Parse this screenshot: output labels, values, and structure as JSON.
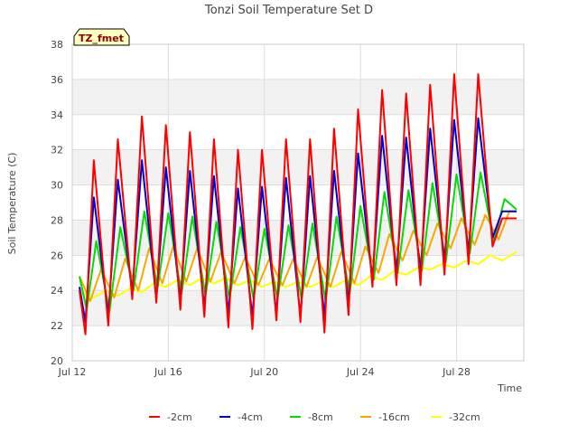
{
  "chart_data": {
    "type": "line",
    "title": "Tonzi Soil Temperature Set D",
    "xlabel": "Time",
    "ylabel": "Soil Temperature (C)",
    "badge": "TZ_fmet",
    "ylim": [
      20,
      38
    ],
    "yticks": [
      20,
      22,
      24,
      26,
      28,
      30,
      32,
      34,
      36,
      38
    ],
    "xlim": [
      12.0,
      30.8
    ],
    "xticks": [
      {
        "value": 12,
        "label": "Jul 12"
      },
      {
        "value": 16,
        "label": "Jul 16"
      },
      {
        "value": 20,
        "label": "Jul 20"
      },
      {
        "value": 24,
        "label": "Jul 24"
      },
      {
        "value": 28,
        "label": "Jul 28"
      }
    ],
    "grid": true,
    "legend_position": "bottom",
    "series": [
      {
        "name": "-2cm",
        "color": "#ff0000",
        "x": [
          12.3,
          12.55,
          12.9,
          13.5,
          13.9,
          14.5,
          14.9,
          15.5,
          15.9,
          16.5,
          16.9,
          17.5,
          17.9,
          18.5,
          18.9,
          19.5,
          19.9,
          20.5,
          20.9,
          21.5,
          21.9,
          22.5,
          22.9,
          23.5,
          23.9,
          24.5,
          24.9,
          25.5,
          25.9,
          26.5,
          26.9,
          27.5,
          27.9,
          28.5,
          28.9,
          29.5,
          29.9,
          30.5
        ],
        "values": [
          24.0,
          21.5,
          31.4,
          22.0,
          32.6,
          23.5,
          33.9,
          23.3,
          33.4,
          22.9,
          33.0,
          22.5,
          32.6,
          21.9,
          32.0,
          21.8,
          32.0,
          22.3,
          32.6,
          22.2,
          32.6,
          21.6,
          33.2,
          22.6,
          34.3,
          24.2,
          35.4,
          24.3,
          35.2,
          24.3,
          35.7,
          24.9,
          36.3,
          25.5,
          36.3,
          26.5,
          28.1,
          28.1
        ]
      },
      {
        "name": "-4cm",
        "color": "#0000cc",
        "x": [
          12.3,
          12.55,
          12.9,
          13.5,
          13.9,
          14.5,
          14.9,
          15.5,
          15.9,
          16.5,
          16.9,
          17.5,
          17.9,
          18.5,
          18.9,
          19.5,
          19.9,
          20.5,
          20.9,
          21.5,
          21.9,
          22.5,
          22.9,
          23.5,
          23.9,
          24.5,
          24.9,
          25.5,
          25.9,
          26.5,
          26.9,
          27.5,
          27.9,
          28.5,
          28.9,
          29.5,
          29.9,
          30.5
        ],
        "values": [
          24.2,
          22.2,
          29.3,
          22.6,
          30.3,
          23.9,
          31.4,
          23.5,
          31.0,
          23.4,
          30.8,
          23.0,
          30.5,
          22.7,
          29.8,
          22.5,
          29.9,
          22.7,
          30.4,
          22.5,
          30.5,
          22.5,
          30.8,
          23.3,
          31.8,
          24.6,
          32.8,
          25.0,
          32.7,
          25.0,
          33.2,
          25.6,
          33.7,
          26.1,
          33.8,
          27.0,
          28.5,
          28.5
        ]
      },
      {
        "name": "-8cm",
        "color": "#00dd00",
        "x": [
          12.3,
          12.6,
          13.0,
          13.55,
          14.0,
          14.55,
          15.0,
          15.55,
          16.0,
          16.55,
          17.0,
          17.55,
          18.0,
          18.55,
          19.0,
          19.55,
          20.0,
          20.55,
          21.0,
          21.55,
          22.0,
          22.55,
          23.0,
          23.55,
          24.0,
          24.55,
          25.0,
          25.55,
          26.0,
          26.55,
          27.0,
          27.55,
          28.0,
          28.55,
          29.0,
          29.55,
          30.0,
          30.5
        ],
        "values": [
          24.8,
          22.9,
          26.8,
          22.8,
          27.6,
          24.0,
          28.5,
          24.1,
          28.4,
          23.8,
          28.2,
          23.7,
          27.9,
          23.5,
          27.6,
          23.5,
          27.5,
          23.5,
          27.7,
          23.5,
          27.8,
          23.4,
          28.2,
          23.8,
          28.8,
          24.6,
          29.6,
          25.0,
          29.7,
          25.1,
          30.1,
          25.6,
          30.6,
          26.1,
          30.7,
          26.8,
          29.2,
          28.6
        ]
      },
      {
        "name": "-16cm",
        "color": "#ffa500",
        "x": [
          12.3,
          12.75,
          13.2,
          13.75,
          14.2,
          14.75,
          15.2,
          15.75,
          16.2,
          16.75,
          17.2,
          17.75,
          18.2,
          18.75,
          19.2,
          19.75,
          20.2,
          20.75,
          21.2,
          21.75,
          22.2,
          22.75,
          23.2,
          23.75,
          24.2,
          24.75,
          25.2,
          25.75,
          26.2,
          26.75,
          27.2,
          27.75,
          28.2,
          28.75,
          29.2,
          29.75,
          30.2,
          30.5
        ],
        "values": [
          24.8,
          23.4,
          25.2,
          23.6,
          25.8,
          24.0,
          26.4,
          24.4,
          26.5,
          24.5,
          26.4,
          24.5,
          26.2,
          24.4,
          25.9,
          24.3,
          25.8,
          24.3,
          25.8,
          24.2,
          25.9,
          24.2,
          26.2,
          24.4,
          26.5,
          25.0,
          27.2,
          25.7,
          27.4,
          26.0,
          27.8,
          26.4,
          28.1,
          26.6,
          28.3,
          26.9,
          28.5,
          28.5
        ]
      },
      {
        "name": "-32cm",
        "color": "#ffff00",
        "x": [
          12.3,
          12.9,
          13.4,
          13.9,
          14.4,
          14.9,
          15.4,
          15.9,
          16.4,
          16.9,
          17.4,
          17.9,
          18.4,
          18.9,
          19.4,
          19.9,
          20.4,
          20.9,
          21.4,
          21.9,
          22.4,
          22.9,
          23.4,
          23.9,
          24.4,
          24.9,
          25.4,
          25.9,
          26.4,
          26.9,
          27.4,
          27.9,
          28.4,
          28.9,
          29.4,
          29.9,
          30.5
        ],
        "values": [
          23.9,
          23.6,
          24.0,
          23.7,
          24.1,
          23.9,
          24.4,
          24.2,
          24.6,
          24.3,
          24.7,
          24.4,
          24.7,
          24.3,
          24.6,
          24.2,
          24.5,
          24.2,
          24.5,
          24.2,
          24.5,
          24.2,
          24.6,
          24.3,
          24.8,
          24.6,
          25.1,
          24.9,
          25.3,
          25.2,
          25.5,
          25.3,
          25.7,
          25.5,
          26.0,
          25.7,
          26.2
        ]
      }
    ]
  }
}
